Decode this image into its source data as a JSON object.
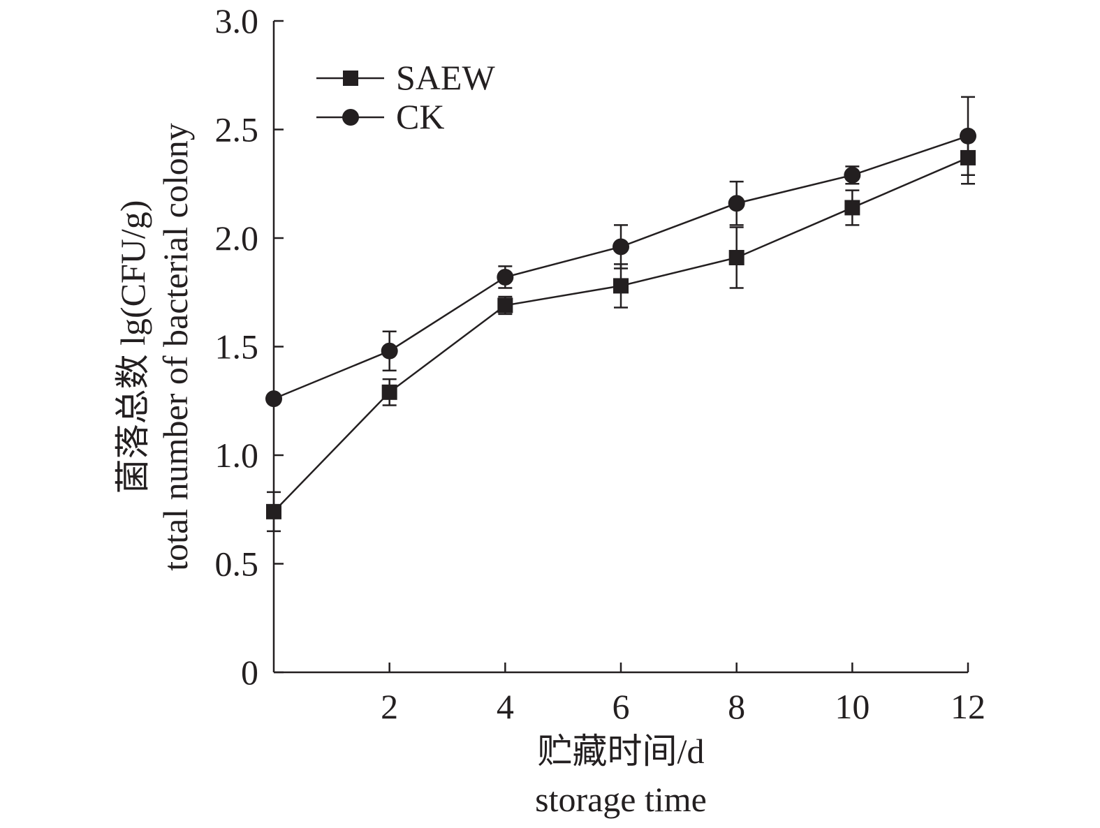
{
  "chart_data": {
    "type": "line",
    "x": [
      0,
      2,
      4,
      6,
      8,
      10,
      12
    ],
    "x_ticks": [
      2,
      4,
      6,
      8,
      10,
      12
    ],
    "x_tick_labels": [
      "2",
      "4",
      "6",
      "8",
      "10",
      "12"
    ],
    "xlim": [
      0,
      12
    ],
    "ylim": [
      0,
      3.0
    ],
    "y_ticks": [
      0,
      0.5,
      1.0,
      1.5,
      2.0,
      2.5,
      3.0
    ],
    "y_tick_labels": [
      "0",
      "0.5",
      "1.0",
      "1.5",
      "2.0",
      "2.5",
      "3.0"
    ],
    "xlabel_cn": "贮藏时间/d",
    "xlabel_en": "storage time",
    "ylabel_cn": "菌落总数 lg(CFU/g)",
    "ylabel_en": "total number of bacterial colony",
    "legend_position": "top-left",
    "series": [
      {
        "name": "SAEW",
        "marker": "square",
        "values": [
          0.74,
          1.29,
          1.69,
          1.78,
          1.91,
          2.14,
          2.37
        ],
        "errors": [
          0.09,
          0.06,
          0.04,
          0.1,
          0.14,
          0.08,
          0.12
        ]
      },
      {
        "name": "CK",
        "marker": "circle",
        "values": [
          1.26,
          1.48,
          1.82,
          1.96,
          2.16,
          2.29,
          2.47
        ],
        "errors": [
          0.0,
          0.09,
          0.05,
          0.1,
          0.1,
          0.04,
          0.18
        ]
      }
    ]
  }
}
